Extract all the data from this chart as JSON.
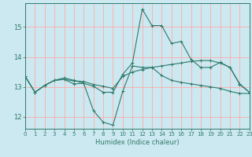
{
  "xlabel": "Humidex (Indice chaleur)",
  "bg_color": "#cce8f0",
  "grid_color": "#ffaaaa",
  "line_color": "#2e7a6a",
  "xlim": [
    0,
    23
  ],
  "ylim": [
    11.6,
    15.8
  ],
  "yticks": [
    12,
    13,
    14,
    15
  ],
  "xticks": [
    0,
    1,
    2,
    3,
    4,
    5,
    6,
    7,
    8,
    9,
    10,
    11,
    12,
    13,
    14,
    15,
    16,
    17,
    18,
    19,
    20,
    21,
    22,
    23
  ],
  "line1_x": [
    0,
    1,
    2,
    3,
    4,
    5,
    6,
    7,
    8,
    9,
    10,
    11,
    12,
    13,
    14,
    15,
    16,
    17,
    18,
    19,
    20,
    21,
    22,
    23
  ],
  "line1_y": [
    13.35,
    12.82,
    13.05,
    13.22,
    13.3,
    13.22,
    13.12,
    13.02,
    12.82,
    12.82,
    13.42,
    13.8,
    15.6,
    15.05,
    15.05,
    14.45,
    14.52,
    13.92,
    13.65,
    13.65,
    13.82,
    13.65,
    13.1,
    12.82
  ],
  "line2_x": [
    0,
    1,
    2,
    3,
    4,
    5,
    6,
    7,
    8,
    9,
    10,
    11,
    12,
    13,
    14,
    15,
    16,
    17,
    18,
    19,
    20,
    21,
    22,
    23
  ],
  "line2_y": [
    13.35,
    12.82,
    13.05,
    13.22,
    13.25,
    13.1,
    13.12,
    12.2,
    11.82,
    11.72,
    12.85,
    13.7,
    13.65,
    13.65,
    13.38,
    13.22,
    13.15,
    13.1,
    13.05,
    13.0,
    12.95,
    12.85,
    12.78,
    12.78
  ],
  "line3_x": [
    0,
    1,
    2,
    3,
    4,
    5,
    6,
    7,
    8,
    9,
    10,
    11,
    12,
    13,
    14,
    15,
    16,
    17,
    18,
    19,
    20,
    21,
    22,
    23
  ],
  "line3_y": [
    13.35,
    12.82,
    13.05,
    13.22,
    13.25,
    13.2,
    13.18,
    13.08,
    13.02,
    12.95,
    13.35,
    13.5,
    13.58,
    13.65,
    13.7,
    13.75,
    13.8,
    13.85,
    13.88,
    13.88,
    13.8,
    13.65,
    13.08,
    12.82
  ]
}
